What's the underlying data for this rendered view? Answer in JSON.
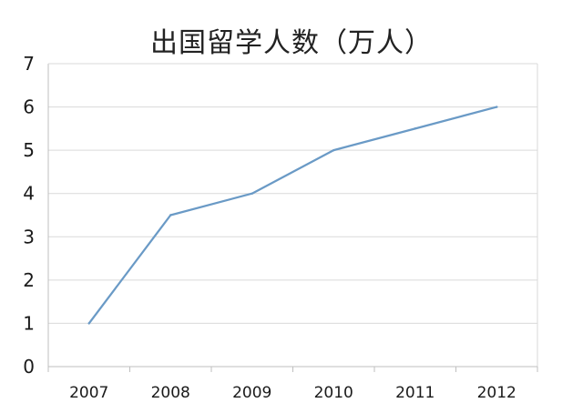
{
  "chart_data": {
    "type": "line",
    "title": "出国留学人数（万人）",
    "xlabel": "",
    "ylabel": "",
    "categories": [
      "2007",
      "2008",
      "2009",
      "2010",
      "2011",
      "2012"
    ],
    "series": [
      {
        "values": [
          1,
          3.5,
          4,
          5,
          5.5,
          6
        ],
        "color": "#6a9ac6"
      }
    ],
    "ylim": [
      0,
      7
    ],
    "yticks": [
      "0",
      "1",
      "2",
      "3",
      "4",
      "5",
      "6",
      "7"
    ],
    "grid": true,
    "legend": "none",
    "colors": {
      "line": "#6a9ac6",
      "grid": "#d9d9d9",
      "axis": "#bfbfbf"
    }
  }
}
